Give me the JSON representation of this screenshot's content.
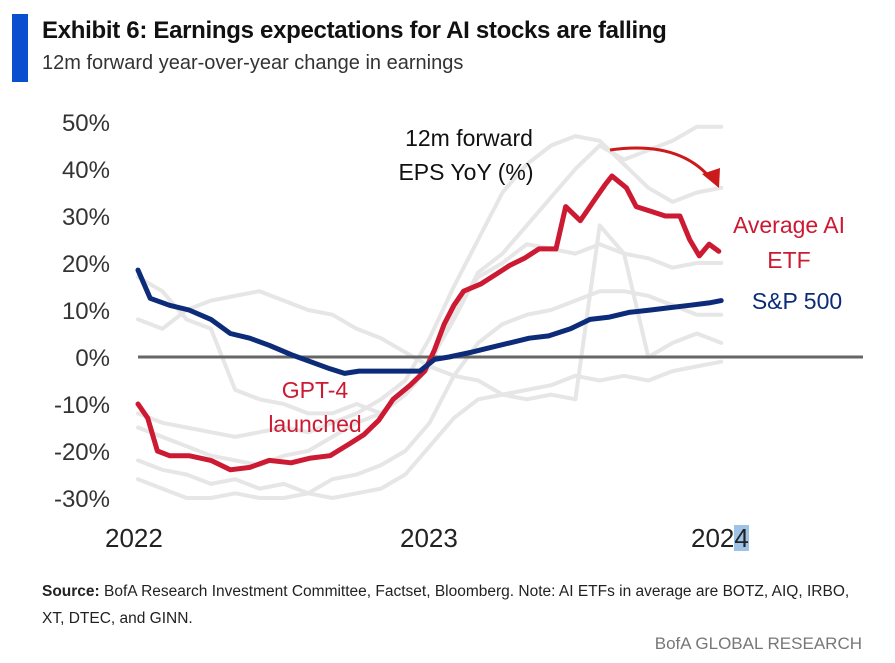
{
  "header": {
    "title": "Exhibit 6: Earnings expectations for AI stocks are falling",
    "subtitle": "12m forward year-over-year change in earnings",
    "accent_color": "#0a4fd0"
  },
  "chart_data": {
    "type": "line",
    "title": "Exhibit 6: Earnings expectations for AI stocks are falling",
    "subtitle": "12m forward year-over-year change in earnings",
    "xlabel": "",
    "ylabel": "12m forward EPS YoY (%)",
    "x_unit": "months since Jan 2022",
    "xlim": [
      0,
      24.5
    ],
    "ylim": [
      -30,
      50
    ],
    "yticks": [
      50,
      40,
      30,
      20,
      10,
      0,
      -10,
      -20,
      -30
    ],
    "ytick_labels": [
      "50%",
      "40%",
      "30%",
      "20%",
      "10%",
      "0%",
      "-10%",
      "-20%",
      "-30%"
    ],
    "xticks": [
      0,
      12,
      24
    ],
    "xtick_labels": [
      "2022",
      "2023",
      "2024"
    ],
    "grid": false,
    "zero_line": true,
    "series": [
      {
        "name": "Average AI ETF",
        "color": "#cc1a33",
        "x": [
          0,
          0.4,
          0.8,
          1.3,
          2.1,
          3.0,
          3.8,
          4.6,
          5.4,
          6.3,
          7.1,
          7.9,
          8.7,
          9.3,
          9.9,
          10.5,
          11.2,
          11.8,
          12.2,
          12.6,
          13.0,
          13.4,
          14.1,
          14.7,
          15.3,
          15.9,
          16.5,
          17.2,
          17.6,
          18.2,
          18.8,
          19.2,
          19.5,
          20.1,
          20.5,
          21.1,
          21.7,
          22.3,
          22.7,
          23.1,
          23.5,
          23.9
        ],
        "y": [
          -10,
          -13,
          -20,
          -21,
          -21,
          -22,
          -24,
          -23.5,
          -22,
          -22.5,
          -21.5,
          -21,
          -18.5,
          -16.5,
          -13.5,
          -9,
          -6,
          -3,
          1.5,
          7,
          11,
          14,
          15.5,
          17.5,
          19.5,
          21,
          23,
          23,
          32,
          29,
          33.5,
          36.5,
          38.5,
          36,
          32,
          31,
          30,
          30,
          25,
          21.5,
          24,
          22.5
        ]
      },
      {
        "name": "S&P 500",
        "color": "#0c2b78",
        "x": [
          0,
          0.5,
          1.3,
          2.1,
          3.0,
          3.8,
          4.6,
          5.4,
          6.3,
          7.1,
          7.9,
          8.5,
          9.1,
          9.9,
          10.8,
          11.6,
          12.2,
          12.8,
          13.7,
          14.5,
          15.3,
          16.1,
          16.9,
          17.8,
          18.6,
          19.4,
          20.2,
          21.1,
          21.9,
          22.7,
          23.5,
          24.0
        ],
        "y": [
          18.5,
          12.5,
          11,
          10,
          8,
          5,
          4,
          2.5,
          0.5,
          -1,
          -2.5,
          -3.5,
          -3,
          -3,
          -3,
          -3,
          -0.5,
          0,
          1,
          2,
          3,
          4,
          4.5,
          6,
          8,
          8.5,
          9.5,
          10,
          10.5,
          11,
          11.5,
          12
        ]
      },
      {
        "name": "AI ETF constituent (grey) 1",
        "color": "#e6e6e6",
        "x": [
          0,
          1,
          2,
          3,
          4,
          5,
          6,
          7,
          8,
          9,
          10,
          11,
          12,
          13,
          14,
          15,
          16,
          17,
          18,
          19,
          20,
          21,
          22,
          23,
          24
        ],
        "y": [
          17,
          14,
          8,
          6,
          -7,
          -9,
          -10,
          -12,
          -12,
          -10,
          -12,
          -8,
          -1,
          8,
          18,
          22,
          28,
          34,
          40,
          45,
          42,
          44,
          46,
          49,
          49
        ]
      },
      {
        "name": "AI ETF constituent (grey) 2",
        "color": "#e6e6e6",
        "x": [
          0,
          1,
          2,
          3,
          4,
          5,
          6,
          7,
          8,
          9,
          10,
          11,
          12,
          13,
          14,
          15,
          16,
          17,
          18,
          19,
          20,
          21,
          22,
          23,
          24
        ],
        "y": [
          -12,
          -14,
          -15,
          -16,
          -17,
          -16,
          -15,
          -16,
          -14,
          -12,
          -9,
          -5,
          4,
          15,
          25,
          35,
          41,
          45,
          47,
          46,
          41,
          36,
          33,
          35,
          36
        ]
      },
      {
        "name": "AI ETF constituent (grey) 3",
        "color": "#e6e6e6",
        "x": [
          0,
          1,
          2,
          3,
          4,
          5,
          6,
          7,
          8,
          9,
          10,
          11,
          12,
          13,
          14,
          15,
          16,
          17,
          18,
          19,
          20,
          21,
          22,
          23,
          24
        ],
        "y": [
          -15,
          -17,
          -19,
          -21,
          -22,
          -23,
          -21,
          -20,
          -17,
          -14,
          -12,
          -8,
          -2,
          10,
          17,
          20,
          24,
          23,
          22,
          24,
          22,
          21,
          19,
          20,
          20
        ]
      },
      {
        "name": "AI ETF constituent (grey) 4",
        "color": "#e6e6e6",
        "x": [
          0,
          1,
          2,
          3,
          4,
          5,
          6,
          7,
          8,
          9,
          10,
          11,
          12,
          13,
          14,
          15,
          16,
          17,
          18,
          19,
          20,
          21,
          22,
          23,
          24
        ],
        "y": [
          -22,
          -24,
          -25,
          -27,
          -26,
          -28,
          -27,
          -29,
          -26,
          -25,
          -23,
          -20,
          -14,
          -4,
          3,
          7,
          9,
          10,
          12,
          14,
          14,
          13,
          11,
          9,
          9
        ]
      },
      {
        "name": "AI ETF constituent (grey) 5",
        "color": "#e6e6e6",
        "x": [
          0,
          1,
          2,
          3,
          4,
          5,
          6,
          7,
          8,
          9,
          10,
          11,
          12,
          13,
          14,
          15,
          16,
          17,
          18,
          19,
          20,
          21,
          22,
          23,
          24
        ],
        "y": [
          -26,
          -28,
          -30,
          -30,
          -29,
          -30,
          -30,
          -29,
          -30,
          -29,
          -28,
          -25,
          -19,
          -13,
          -9,
          -8,
          -7,
          -6,
          -4,
          -5,
          -4,
          -5,
          -3,
          -2,
          -1
        ]
      },
      {
        "name": "AI ETF constituent (grey) 6",
        "color": "#e6e6e6",
        "x": [
          0,
          1,
          2,
          3,
          4,
          5,
          6,
          7,
          8,
          9,
          10,
          11,
          12,
          13,
          14,
          15,
          16,
          17,
          18,
          19,
          20,
          21,
          22,
          23,
          24
        ],
        "y": [
          8,
          6,
          10,
          12,
          13,
          14,
          12,
          10,
          9,
          6,
          4,
          1,
          -2,
          -4,
          -5,
          -8,
          -9,
          -8,
          -9,
          28,
          22,
          0,
          3,
          5,
          3
        ]
      }
    ],
    "annotations": [
      {
        "text": "12m forward",
        "color": "#111111"
      },
      {
        "text": "EPS YoY (%)",
        "color": "#111111"
      },
      {
        "text": "GPT-4",
        "color": "#cc1a33"
      },
      {
        "text": "launched",
        "color": "#cc1a33"
      },
      {
        "text": "Average AI",
        "color": "#cc1a33"
      },
      {
        "text": "ETF",
        "color": "#cc1a33"
      },
      {
        "text": "S&P 500",
        "color": "#0c2b78"
      },
      {
        "text": "falling-arrow",
        "color": "#cc1a1a"
      }
    ],
    "legend": "inline-right"
  },
  "labels": {
    "ann_line1": "12m forward",
    "ann_line2": "EPS YoY (%)",
    "gpt_line1": "GPT-4",
    "gpt_line2": "launched",
    "ai_line1": "Average AI",
    "ai_line2": "ETF",
    "sp_label": "S&P 500",
    "x2022": "2022",
    "x2023": "2023",
    "x2024_a": "202",
    "x2024_b": "4"
  },
  "footer": {
    "source_label": "Source:",
    "source_text": " BofA Research Investment Committee, Factset, Bloomberg. Note: AI ETFs in average are BOTZ, AIQ, IRBO, XT, DTEC, and GINN.",
    "brand": "BofA GLOBAL RESEARCH"
  }
}
